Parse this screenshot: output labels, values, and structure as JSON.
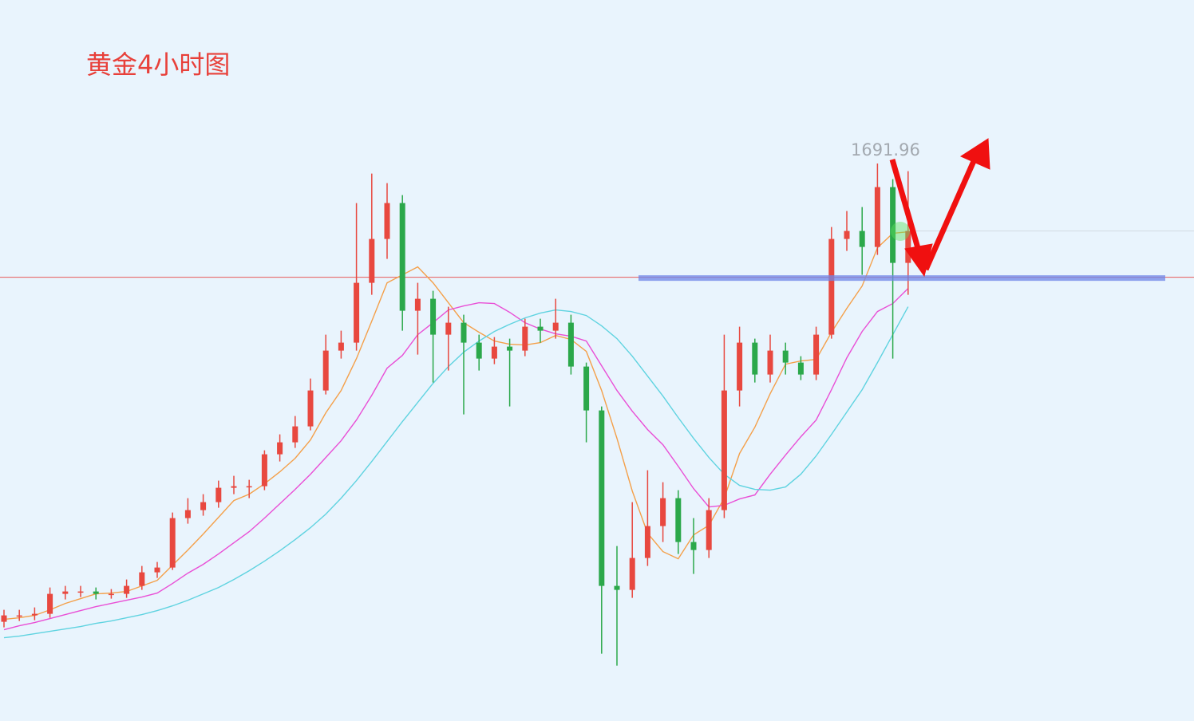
{
  "chart_data": {
    "type": "candlestick",
    "title": "黄金4小时图",
    "up_color": "#e8483f",
    "down_color": "#2ba84a",
    "ylim": [
      1625,
      1700
    ],
    "open": [
      1634.5,
      1635.3,
      1635.3,
      1635.5,
      1638.0,
      1638.3,
      1638.3,
      1638.0,
      1638.0,
      1639.0,
      1640.7,
      1641.3,
      1647.5,
      1648.5,
      1649.5,
      1651.3,
      1651.5,
      1651.5,
      1655.5,
      1657.0,
      1659.0,
      1663.5,
      1668.5,
      1669.5,
      1677.0,
      1682.5,
      1687.0,
      1673.5,
      1675.0,
      1670.5,
      1672.0,
      1669.5,
      1667.5,
      1669.0,
      1668.5,
      1671.5,
      1671.0,
      1672.0,
      1666.5,
      1661.0,
      1639.0,
      1638.5,
      1642.5,
      1646.5,
      1650.0,
      1644.5,
      1643.5,
      1648.5,
      1663.5,
      1669.5,
      1665.5,
      1668.5,
      1667.0,
      1665.5,
      1670.5,
      1682.5,
      1683.5,
      1681.5,
      1689.0,
      1679.5
    ],
    "high": [
      1636.0,
      1636.0,
      1636.3,
      1638.8,
      1639.0,
      1639.0,
      1638.8,
      1638.6,
      1639.8,
      1641.5,
      1642.0,
      1648.2,
      1650.0,
      1650.5,
      1652.2,
      1652.8,
      1652.3,
      1656.0,
      1658.0,
      1660.3,
      1665.0,
      1670.5,
      1671.0,
      1687.0,
      1690.7,
      1689.5,
      1688.0,
      1677.0,
      1676.0,
      1674.0,
      1673.0,
      1670.5,
      1670.2,
      1670.0,
      1672.5,
      1672.5,
      1675.0,
      1673.0,
      1667.0,
      1661.5,
      1644.0,
      1649.5,
      1653.5,
      1652.0,
      1651.0,
      1647.5,
      1650.0,
      1670.5,
      1671.5,
      1670.0,
      1670.5,
      1669.5,
      1667.8,
      1671.5,
      1684.0,
      1686.0,
      1686.5,
      1691.96,
      1690.0,
      1691.0
    ],
    "low": [
      1633.8,
      1634.6,
      1634.7,
      1635.0,
      1637.3,
      1637.6,
      1637.3,
      1637.4,
      1637.5,
      1638.5,
      1640.0,
      1641.0,
      1646.8,
      1647.8,
      1648.8,
      1650.5,
      1650.0,
      1651.0,
      1654.6,
      1656.3,
      1658.5,
      1663.0,
      1667.5,
      1668.5,
      1675.5,
      1680.0,
      1671.0,
      1668.0,
      1664.5,
      1666.0,
      1660.5,
      1666.0,
      1666.8,
      1661.5,
      1667.8,
      1669.5,
      1670.0,
      1665.5,
      1657.0,
      1630.5,
      1629.0,
      1637.5,
      1641.5,
      1644.5,
      1643.0,
      1640.5,
      1642.5,
      1647.5,
      1661.5,
      1664.5,
      1664.5,
      1665.5,
      1664.8,
      1664.8,
      1670.0,
      1681.0,
      1678.0,
      1680.5,
      1667.5,
      1675.5
    ],
    "close": [
      1635.3,
      1635.3,
      1635.5,
      1638.0,
      1638.3,
      1638.3,
      1638.0,
      1638.0,
      1639.0,
      1640.7,
      1641.3,
      1647.5,
      1648.5,
      1649.5,
      1651.3,
      1651.5,
      1651.5,
      1655.5,
      1657.0,
      1659.0,
      1663.5,
      1668.5,
      1669.5,
      1677.0,
      1682.5,
      1687.0,
      1673.5,
      1675.0,
      1670.5,
      1672.0,
      1669.5,
      1667.5,
      1669.0,
      1668.5,
      1671.5,
      1671.0,
      1672.0,
      1666.5,
      1661.0,
      1639.0,
      1638.5,
      1642.5,
      1646.5,
      1650.0,
      1644.5,
      1643.5,
      1648.5,
      1663.5,
      1669.5,
      1665.5,
      1668.5,
      1667.0,
      1665.5,
      1670.5,
      1682.5,
      1683.5,
      1681.5,
      1689.0,
      1679.5,
      1683.5
    ],
    "series": [
      {
        "color": "#f4a04a",
        "values": [
          1634.8,
          1635.0,
          1635.3,
          1636.0,
          1636.8,
          1637.4,
          1638.0,
          1638.1,
          1638.3,
          1639.0,
          1639.7,
          1641.6,
          1643.5,
          1645.5,
          1647.6,
          1649.7,
          1650.5,
          1651.8,
          1653.3,
          1655.0,
          1657.3,
          1660.7,
          1663.5,
          1667.5,
          1672.2,
          1677.0,
          1678.0,
          1679.0,
          1677.0,
          1674.5,
          1672.0,
          1670.8,
          1669.7,
          1669.3,
          1669.2,
          1669.5,
          1670.4,
          1669.9,
          1668.4,
          1663.5,
          1657.5,
          1650.9,
          1645.6,
          1643.3,
          1642.4,
          1645.4,
          1646.6,
          1650.0,
          1655.6,
          1658.9,
          1663.1,
          1666.8,
          1667.2,
          1667.4,
          1670.8,
          1673.8,
          1676.6,
          1681.4,
          1683.2,
          1683.4
        ]
      },
      {
        "color": "#e94fd6",
        "values": [
          1633.5,
          1634.0,
          1634.4,
          1634.9,
          1635.4,
          1635.9,
          1636.4,
          1636.8,
          1637.2,
          1637.6,
          1638.1,
          1639.3,
          1640.6,
          1641.7,
          1643.0,
          1644.4,
          1645.8,
          1647.5,
          1649.3,
          1651.1,
          1653.0,
          1655.1,
          1657.2,
          1659.8,
          1662.9,
          1666.3,
          1667.9,
          1670.5,
          1672.0,
          1673.6,
          1674.1,
          1674.5,
          1674.4,
          1673.3,
          1672.0,
          1671.2,
          1670.6,
          1670.3,
          1669.7,
          1666.6,
          1663.5,
          1660.9,
          1658.6,
          1656.7,
          1654.0,
          1651.2,
          1648.9,
          1649.1,
          1649.9,
          1650.4,
          1653.0,
          1655.4,
          1657.7,
          1659.8,
          1663.6,
          1667.6,
          1670.9,
          1673.4,
          1674.4,
          1676.3
        ]
      },
      {
        "color": "#5fd3e0",
        "values": [
          1632.5,
          1632.7,
          1633.0,
          1633.3,
          1633.6,
          1633.9,
          1634.3,
          1634.6,
          1635.0,
          1635.4,
          1635.9,
          1636.5,
          1637.2,
          1638.0,
          1638.8,
          1639.8,
          1640.9,
          1642.1,
          1643.4,
          1644.8,
          1646.3,
          1648.0,
          1650.0,
          1652.2,
          1654.6,
          1657.1,
          1659.6,
          1662.0,
          1664.4,
          1666.5,
          1668.3,
          1669.7,
          1670.9,
          1671.8,
          1672.6,
          1673.2,
          1673.6,
          1673.4,
          1672.9,
          1671.6,
          1670.0,
          1667.8,
          1665.3,
          1662.8,
          1660.1,
          1657.5,
          1655.1,
          1653.0,
          1651.6,
          1651.1,
          1651.0,
          1651.4,
          1653.0,
          1655.3,
          1658.0,
          1660.8,
          1663.6,
          1667.0,
          1670.5,
          1674.0
        ]
      }
    ],
    "hline": {
      "value": 1677.7,
      "color": "#e85a5a"
    },
    "support_band": {
      "value": 1677.6,
      "color": "#6f86e8"
    },
    "price_line": {
      "value": 1683.5,
      "color": "#d3dbe3"
    },
    "label_index": 57
  }
}
